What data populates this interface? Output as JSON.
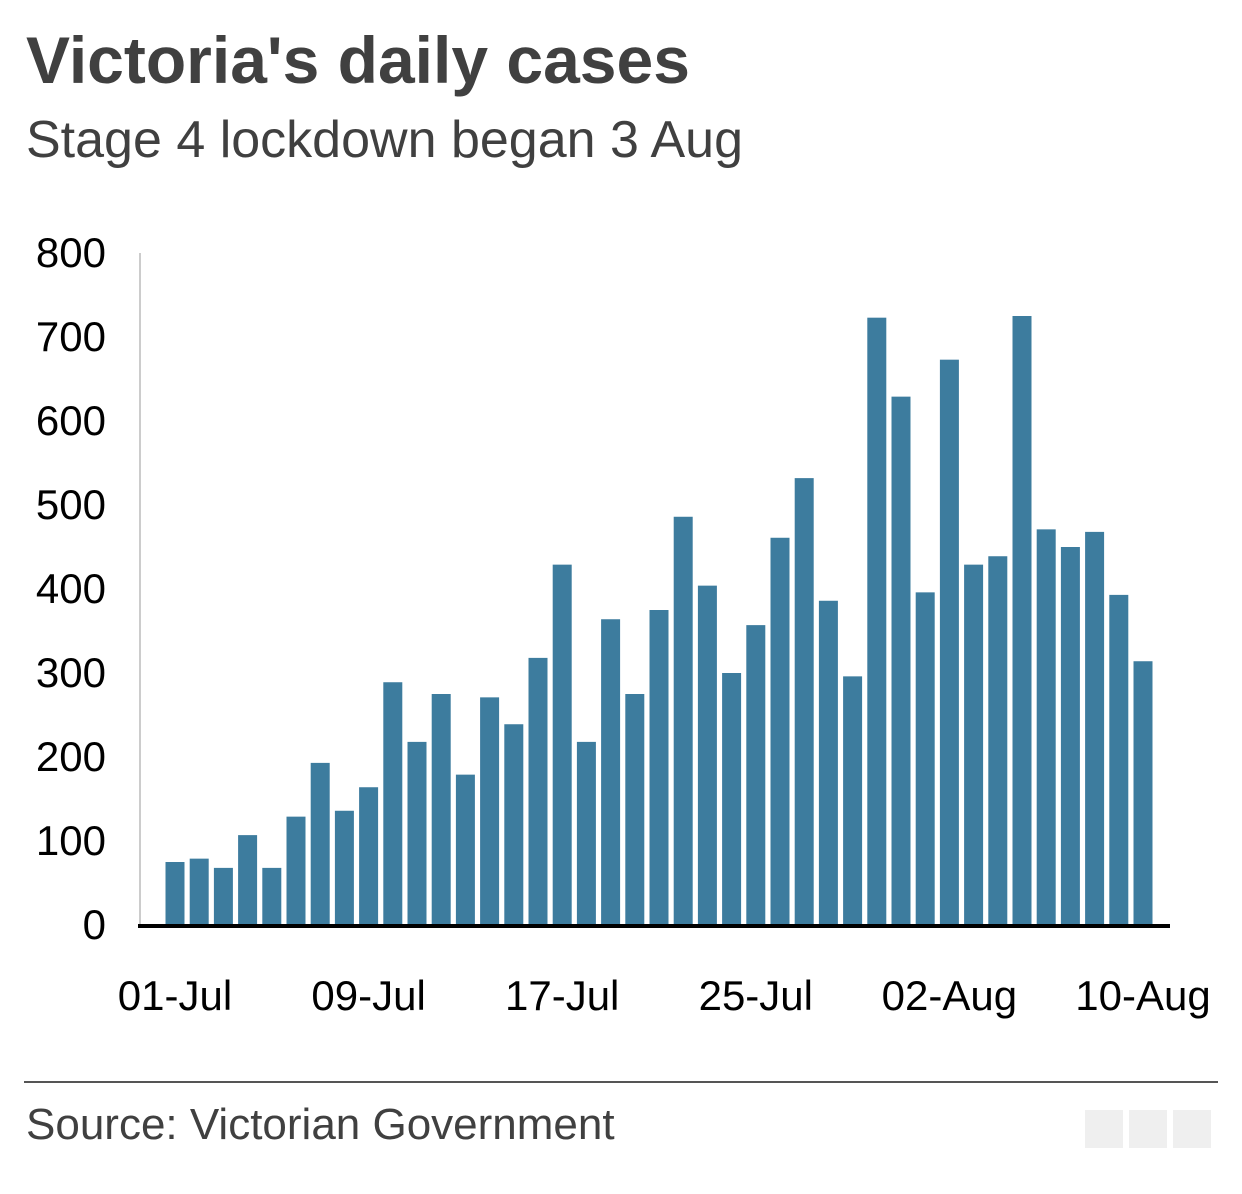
{
  "chart_data": {
    "type": "bar",
    "title": "Victoria's daily cases",
    "subtitle": "Stage 4 lockdown began 3 Aug",
    "xlabel": "",
    "ylabel": "",
    "ylim": [
      0,
      800
    ],
    "yticks": [
      0,
      100,
      200,
      300,
      400,
      500,
      600,
      700,
      800
    ],
    "xtick_labels": [
      "01-Jul",
      "09-Jul",
      "17-Jul",
      "25-Jul",
      "02-Aug",
      "10-Aug"
    ],
    "xtick_indices": [
      0,
      8,
      16,
      24,
      32,
      40
    ],
    "grid": false,
    "color": "#3d7c9e",
    "categories": [
      "01-Jul",
      "02-Jul",
      "03-Jul",
      "04-Jul",
      "05-Jul",
      "06-Jul",
      "07-Jul",
      "08-Jul",
      "09-Jul",
      "10-Jul",
      "11-Jul",
      "12-Jul",
      "13-Jul",
      "14-Jul",
      "15-Jul",
      "16-Jul",
      "17-Jul",
      "18-Jul",
      "19-Jul",
      "20-Jul",
      "21-Jul",
      "22-Jul",
      "23-Jul",
      "24-Jul",
      "25-Jul",
      "26-Jul",
      "27-Jul",
      "28-Jul",
      "29-Jul",
      "30-Jul",
      "31-Jul",
      "01-Aug",
      "02-Aug",
      "03-Aug",
      "04-Aug",
      "05-Aug",
      "06-Aug",
      "07-Aug",
      "08-Aug",
      "09-Aug",
      "10-Aug"
    ],
    "values": [
      75,
      79,
      68,
      107,
      68,
      129,
      193,
      136,
      164,
      289,
      218,
      275,
      179,
      271,
      239,
      318,
      429,
      218,
      364,
      275,
      375,
      486,
      404,
      300,
      357,
      461,
      532,
      386,
      296,
      723,
      629,
      396,
      673,
      429,
      439,
      725,
      471,
      450,
      468,
      393,
      314
    ]
  },
  "source": "Source: Victorian Government",
  "logo_text": "BBC"
}
